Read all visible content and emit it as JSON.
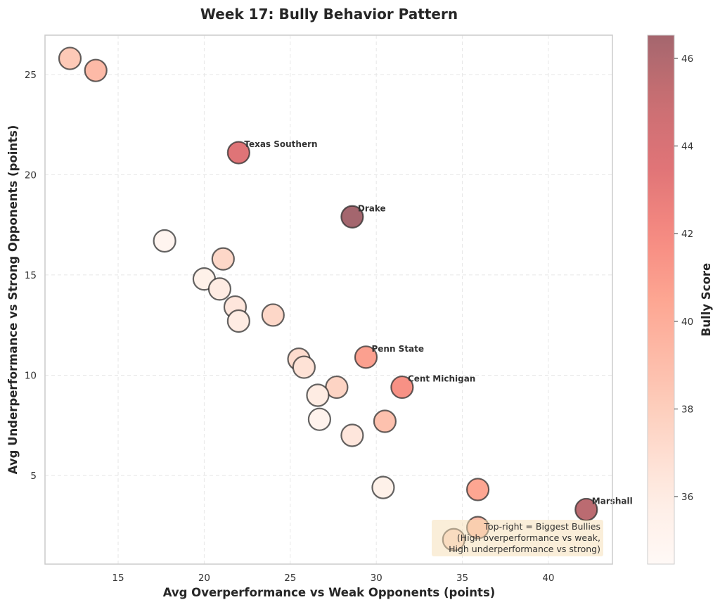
{
  "chart_data": {
    "type": "scatter",
    "title": "Week 17: Bully Behavior Pattern",
    "xlabel": "Avg Overperformance vs Weak Opponents (points)",
    "ylabel": "Avg Underperformance vs Strong Opponents (points)",
    "xlim": [
      10.75,
      43.72
    ],
    "ylim": [
      0.58,
      26.96
    ],
    "xticks": [
      15,
      20,
      25,
      30,
      35,
      40
    ],
    "yticks": [
      5,
      10,
      15,
      20,
      25
    ],
    "grid": true,
    "colorbar": {
      "label": "Bully Score",
      "range": [
        34.46,
        46.53
      ],
      "ticks": [
        36,
        38,
        40,
        42,
        44,
        46
      ],
      "colormap": "Reds",
      "alpha": 0.6
    },
    "points": [
      {
        "x": 12.2,
        "y": 25.8,
        "score": 38.3,
        "label": ""
      },
      {
        "x": 13.7,
        "y": 25.2,
        "score": 39.2,
        "label": ""
      },
      {
        "x": 22.0,
        "y": 21.1,
        "score": 43.6,
        "label": "Texas Southern"
      },
      {
        "x": 28.6,
        "y": 17.9,
        "score": 46.5,
        "label": "Drake"
      },
      {
        "x": 17.7,
        "y": 16.7,
        "score": 35.0,
        "label": ""
      },
      {
        "x": 21.1,
        "y": 15.8,
        "score": 37.4,
        "label": ""
      },
      {
        "x": 20.0,
        "y": 14.8,
        "score": 35.5,
        "label": ""
      },
      {
        "x": 20.9,
        "y": 14.3,
        "score": 36.0,
        "label": ""
      },
      {
        "x": 21.8,
        "y": 13.4,
        "score": 36.4,
        "label": ""
      },
      {
        "x": 22.0,
        "y": 12.7,
        "score": 36.0,
        "label": ""
      },
      {
        "x": 24.0,
        "y": 13.0,
        "score": 37.4,
        "label": ""
      },
      {
        "x": 25.5,
        "y": 10.8,
        "score": 37.1,
        "label": ""
      },
      {
        "x": 25.8,
        "y": 10.4,
        "score": 36.7,
        "label": ""
      },
      {
        "x": 29.4,
        "y": 10.9,
        "score": 40.8,
        "label": "Penn State"
      },
      {
        "x": 31.5,
        "y": 9.4,
        "score": 41.6,
        "label": "Cent Michigan"
      },
      {
        "x": 27.7,
        "y": 9.4,
        "score": 37.6,
        "label": ""
      },
      {
        "x": 26.6,
        "y": 9.0,
        "score": 36.0,
        "label": ""
      },
      {
        "x": 26.7,
        "y": 7.8,
        "score": 35.2,
        "label": ""
      },
      {
        "x": 30.5,
        "y": 7.7,
        "score": 38.8,
        "label": ""
      },
      {
        "x": 28.6,
        "y": 7.0,
        "score": 36.4,
        "label": ""
      },
      {
        "x": 30.4,
        "y": 4.4,
        "score": 35.5,
        "label": ""
      },
      {
        "x": 35.9,
        "y": 4.3,
        "score": 40.5,
        "label": ""
      },
      {
        "x": 42.2,
        "y": 3.3,
        "score": 45.6,
        "label": "Marshall"
      },
      {
        "x": 35.9,
        "y": 2.4,
        "score": 39.0,
        "label": ""
      },
      {
        "x": 34.5,
        "y": 1.8,
        "score": 37.2,
        "label": ""
      }
    ],
    "annotation": {
      "lines": [
        "Top-right = Biggest Bullies",
        "(High overperformance vs weak,",
        "High underperformance vs strong)"
      ],
      "position": "bottom-right"
    }
  }
}
